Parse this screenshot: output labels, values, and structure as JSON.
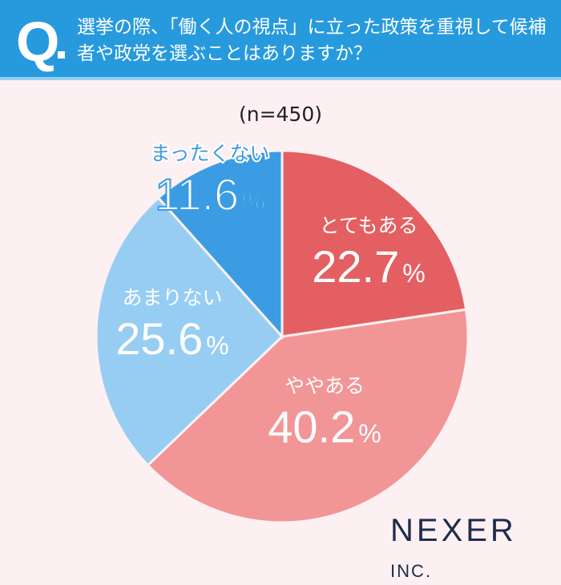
{
  "header": {
    "q": "Q",
    "question": "選挙の際、「働く人の視点」に立った政策を重視して候補者や政党を選ぶことはありますか？"
  },
  "chart_data": {
    "type": "pie",
    "subtitle": "(n=450)",
    "unit": "%",
    "slices": [
      {
        "label": "とてもある",
        "value": 22.7,
        "color": "#e45f61"
      },
      {
        "label": "ややある",
        "value": 40.2,
        "color": "#f29597"
      },
      {
        "label": "あまりない",
        "value": 25.6,
        "color": "#97cdf3"
      },
      {
        "label": "まったくない",
        "value": 11.6,
        "color": "#3b9ce3"
      }
    ]
  },
  "logo": {
    "main": "NEXER",
    "suffix": "INC."
  }
}
